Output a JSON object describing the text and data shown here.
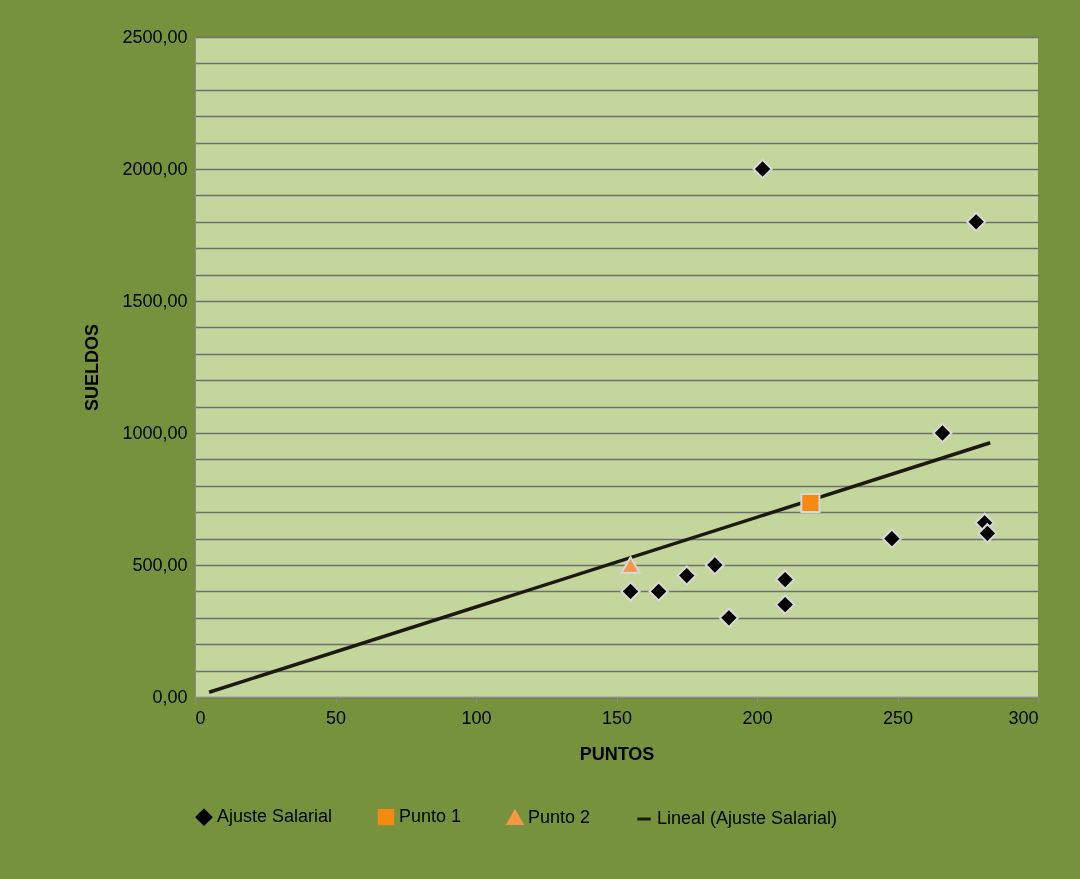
{
  "chart_data": {
    "type": "scatter",
    "xlabel": "PUNTOS",
    "ylabel": "SUELDOS",
    "xlim": [
      0,
      300
    ],
    "xticks": [
      0,
      50,
      100,
      150,
      200,
      250,
      300
    ],
    "ylim": [
      0,
      2500
    ],
    "yticks": [
      {
        "value": 0,
        "label": "0,00"
      },
      {
        "value": 100,
        "label": null
      },
      {
        "value": 200,
        "label": null
      },
      {
        "value": 300,
        "label": null
      },
      {
        "value": 400,
        "label": null
      },
      {
        "value": 500,
        "label": "500,00"
      },
      {
        "value": 600,
        "label": null
      },
      {
        "value": 700,
        "label": null
      },
      {
        "value": 800,
        "label": null
      },
      {
        "value": 900,
        "label": null
      },
      {
        "value": 1000,
        "label": "1000,00"
      },
      {
        "value": 1100,
        "label": null
      },
      {
        "value": 1200,
        "label": null
      },
      {
        "value": 1300,
        "label": null
      },
      {
        "value": 1400,
        "label": null
      },
      {
        "value": 1500,
        "label": "1500,00"
      },
      {
        "value": 1600,
        "label": null
      },
      {
        "value": 1700,
        "label": null
      },
      {
        "value": 1800,
        "label": null
      },
      {
        "value": 1900,
        "label": null
      },
      {
        "value": 2000,
        "label": "2000,00"
      },
      {
        "value": 2100,
        "label": null
      },
      {
        "value": 2200,
        "label": null
      },
      {
        "value": 2300,
        "label": null
      },
      {
        "value": 2400,
        "label": null
      },
      {
        "value": 2500,
        "label": "2500,00"
      }
    ],
    "grid": "y",
    "legend": "bottom",
    "series": [
      {
        "name": "Ajuste Salarial",
        "marker": "diamond",
        "color": "#000000",
        "x": [
          155,
          165,
          175,
          185,
          190,
          202,
          210,
          210,
          248,
          266,
          278,
          281,
          282
        ],
        "values": [
          400,
          400,
          460,
          500,
          300,
          2000,
          445,
          350,
          600,
          1000,
          1800,
          660,
          620
        ]
      },
      {
        "name": "Punto 1",
        "marker": "square",
        "color": "#f58a12",
        "x": [
          219
        ],
        "values": [
          735
        ]
      },
      {
        "name": "Punto 2",
        "marker": "triangle",
        "color": "#f79646",
        "x": [
          155
        ],
        "values": [
          500
        ]
      },
      {
        "name": "Lineal (Ajuste Salarial)",
        "type": "line",
        "line_style": "solid",
        "color": "#1c1a10",
        "x": [
          5,
          283
        ],
        "values": [
          18,
          963
        ]
      }
    ]
  }
}
